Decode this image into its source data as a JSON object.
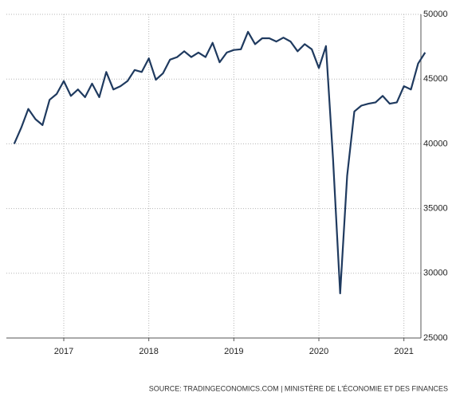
{
  "chart_data": {
    "type": "line",
    "source": "SOURCE: TRADINGECONOMICS.COM | MINISTÈRE DE L'ÉCONOMIE ET DES FINANCES",
    "x": [
      2016.417,
      2016.5,
      2016.583,
      2016.667,
      2016.75,
      2016.833,
      2016.917,
      2017,
      2017.083,
      2017.167,
      2017.25,
      2017.333,
      2017.417,
      2017.5,
      2017.583,
      2017.667,
      2017.75,
      2017.833,
      2017.917,
      2018,
      2018.083,
      2018.167,
      2018.25,
      2018.333,
      2018.417,
      2018.5,
      2018.583,
      2018.667,
      2018.75,
      2018.833,
      2018.917,
      2019,
      2019.083,
      2019.167,
      2019.25,
      2019.333,
      2019.417,
      2019.5,
      2019.583,
      2019.667,
      2019.75,
      2019.833,
      2019.917,
      2020,
      2020.083,
      2020.167,
      2020.25,
      2020.333,
      2020.417,
      2020.5,
      2020.583,
      2020.667,
      2020.75,
      2020.833,
      2020.917,
      2021,
      2021.083,
      2021.167,
      2021.25
    ],
    "series": [
      {
        "color": "#1f3a5f",
        "values": [
          40000,
          41250,
          42700,
          41900,
          41450,
          43400,
          43850,
          44850,
          43700,
          44200,
          43600,
          44650,
          43600,
          45550,
          44200,
          44450,
          44850,
          45700,
          45550,
          46600,
          44950,
          45450,
          46500,
          46700,
          47150,
          46700,
          47050,
          46700,
          47800,
          46300,
          47050,
          47250,
          47300,
          48650,
          47700,
          48150,
          48150,
          47900,
          48200,
          47900,
          47150,
          47700,
          47300,
          45850,
          47550,
          38800,
          28450,
          37550,
          42500,
          42950,
          43100,
          43200,
          43700,
          43100,
          43200,
          44450,
          44200,
          46200,
          47050
        ]
      }
    ],
    "xlim": [
      2016.325,
      2021.2
    ],
    "xticks": [
      2017,
      2018,
      2019,
      2020,
      2021
    ],
    "ylim": [
      25000,
      50000
    ],
    "yticks": [
      25000,
      30000,
      35000,
      40000,
      45000,
      50000
    ],
    "grid": true
  }
}
